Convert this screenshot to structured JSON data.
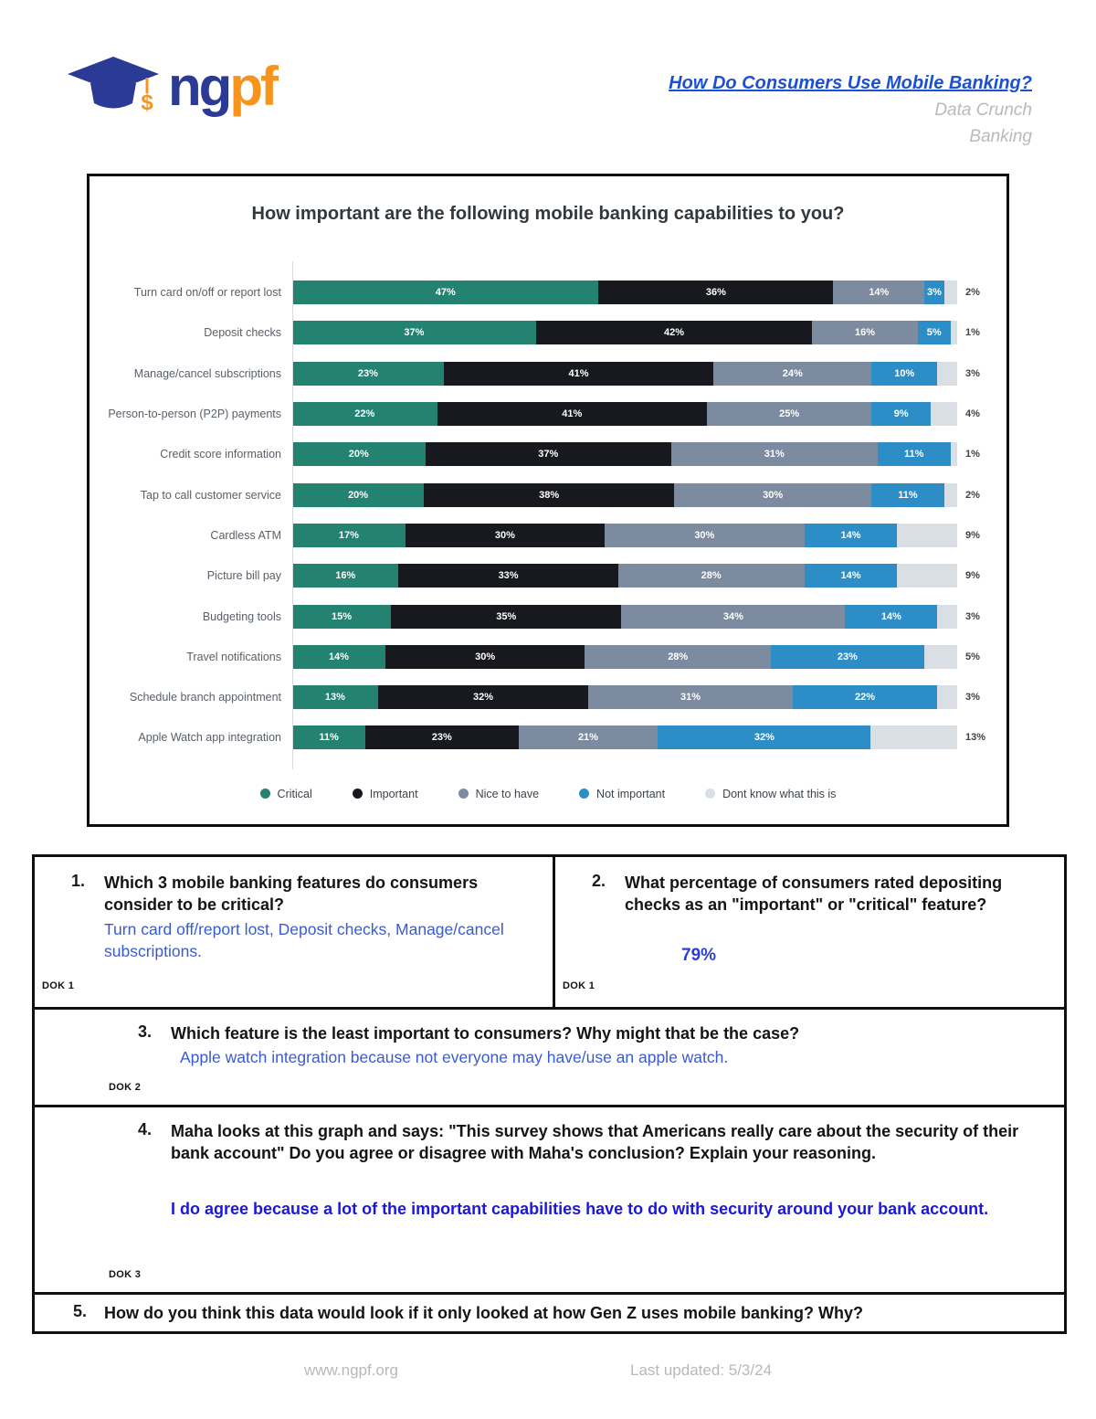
{
  "header": {
    "logo_ng": "ng",
    "logo_pf": "pf",
    "title": "How Do Consumers Use Mobile Banking?",
    "subtitle1": "Data Crunch",
    "subtitle2": "Banking"
  },
  "chart_data": {
    "type": "bar",
    "orientation": "horizontal-stacked",
    "title": "How important are the following mobile banking capabilities to you?",
    "legend": [
      "Critical",
      "Important",
      "Nice to have",
      "Not important",
      "Dont know what this is"
    ],
    "legend_position": "bottom",
    "colors": [
      "#238270",
      "#17191e",
      "#7d8ba0",
      "#2d8ec7",
      "#dadfe5"
    ],
    "categories": [
      "Turn card on/off or report lost",
      "Deposit checks",
      "Manage/cancel subscriptions",
      "Person-to-person (P2P) payments",
      "Credit score information",
      "Tap to call customer service",
      "Cardless ATM",
      "Picture bill pay",
      "Budgeting tools",
      "Travel notifications",
      "Schedule branch appointment",
      "Apple Watch app integration"
    ],
    "series": [
      {
        "name": "Critical",
        "values": [
          47,
          37,
          23,
          22,
          20,
          20,
          17,
          16,
          15,
          14,
          13,
          11
        ]
      },
      {
        "name": "Important",
        "values": [
          36,
          42,
          41,
          41,
          37,
          38,
          30,
          33,
          35,
          30,
          32,
          23
        ]
      },
      {
        "name": "Nice to have",
        "values": [
          14,
          16,
          24,
          25,
          31,
          30,
          30,
          28,
          34,
          28,
          31,
          21
        ]
      },
      {
        "name": "Not important",
        "values": [
          3,
          5,
          10,
          9,
          11,
          11,
          14,
          14,
          14,
          23,
          22,
          32
        ]
      },
      {
        "name": "Dont know what this is",
        "values": [
          2,
          1,
          3,
          4,
          1,
          2,
          9,
          9,
          3,
          5,
          3,
          13
        ]
      }
    ],
    "value_unit": "%",
    "grid": false
  },
  "questions": {
    "q1": {
      "number": "1.",
      "text": "Which 3 mobile banking features do consumers consider to be critical?",
      "answer": "Turn card off/report lost, Deposit checks, Manage/cancel subscriptions.",
      "dok": "DOK 1"
    },
    "q2": {
      "number": "2.",
      "text": "What percentage of consumers rated depositing checks as an \"important\" or \"critical\" feature?",
      "answer": "79%",
      "dok": "DOK 1"
    },
    "q3": {
      "number": "3.",
      "text": "Which feature is the least important to consumers? Why might that be the case?",
      "answer": "Apple watch integration because not everyone may have/use an apple watch.",
      "dok": "DOK 2"
    },
    "q4": {
      "number": "4.",
      "text": "Maha looks at this graph and says: \"This survey shows that Americans really care about the security of their bank account\" Do you agree or disagree with Maha's conclusion? Explain your reasoning.",
      "answer": "I do agree because a lot of the important capabilities have to do with security around your bank account.",
      "dok": "DOK 3"
    },
    "q5": {
      "number": "5.",
      "text": "How do you think this data would look if it only looked at how Gen Z uses mobile banking? Why?"
    }
  },
  "footer": {
    "url": "www.ngpf.org",
    "updated": "Last updated: 5/3/24"
  },
  "colors": {
    "title_link": "#1c50d4",
    "answer_blue": "#3a5bd0",
    "answer_bold_blue": "#1a18e0",
    "logo_blue": "#2b3a94",
    "logo_orange": "#f7941d"
  }
}
